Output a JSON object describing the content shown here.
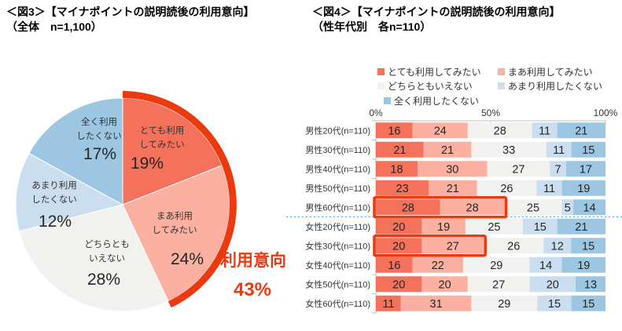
{
  "colors": {
    "series": [
      "#F4715B",
      "#FBB0A2",
      "#F1F1EF",
      "#CBDEF0",
      "#9CC6E2"
    ],
    "highlight_red": "#EA3A0E",
    "separator_blue": "#4AA3DA",
    "axis_gray": "#BFBFBF",
    "value_text": "#262626",
    "label_text": "#333333"
  },
  "chart_data": [
    {
      "type": "pie",
      "title": "＜図3＞【マイナポイントの説明読後の利用意向】",
      "subtitle": "（全体　n=1,100）",
      "unit": "%",
      "start_angle": "top",
      "direction": "clockwise",
      "categories": [
        "とても利用してみたい",
        "まあ利用してみたい",
        "どちらともいえない",
        "あまり利用したくない",
        "全く利用したくない"
      ],
      "values": [
        19,
        24,
        28,
        12,
        17
      ],
      "label_lines": [
        [
          "とても利用",
          "してみたい"
        ],
        [
          "まあ利用",
          "してみたい"
        ],
        [
          "どちらとも",
          "いえない"
        ],
        [
          "あまり利用",
          "したくない"
        ],
        [
          "全く利用",
          "したくない"
        ]
      ],
      "annotation": {
        "label": "利用意向",
        "value_text": "43%",
        "span_percent": 43,
        "covers": [
          "とても利用してみたい",
          "まあ利用してみたい"
        ]
      }
    },
    {
      "type": "bar",
      "variant": "stacked-horizontal-100",
      "title": "＜図4＞【マイナポイントの説明読後の利用意向】",
      "subtitle": "（性年代別　各n=110）",
      "xlim": [
        0,
        100
      ],
      "x_ticks": [
        {
          "pos": 0,
          "label": "0%"
        },
        {
          "pos": 50,
          "label": "50%"
        },
        {
          "pos": 100,
          "label": "100%"
        }
      ],
      "legend_position": "top",
      "categories": [
        "男性20代(n=110)",
        "男性30代(n=110)",
        "男性40代(n=110)",
        "男性50代(n=110)",
        "男性60代(n=110)",
        "女性20代(n=110)",
        "女性30代(n=110)",
        "女性40代(n=110)",
        "女性50代(n=110)",
        "女性60代(n=110)"
      ],
      "series": [
        {
          "name": "とても利用してみたい",
          "values": [
            16,
            21,
            18,
            23,
            28,
            20,
            20,
            16,
            20,
            11
          ]
        },
        {
          "name": "まあ利用してみたい",
          "values": [
            24,
            21,
            30,
            21,
            28,
            19,
            27,
            22,
            20,
            31
          ]
        },
        {
          "name": "どちらともいえない",
          "values": [
            28,
            33,
            27,
            26,
            25,
            25,
            26,
            29,
            27,
            29
          ]
        },
        {
          "name": "あまり利用したくない",
          "values": [
            11,
            11,
            7,
            11,
            5,
            15,
            12,
            14,
            20,
            15
          ]
        },
        {
          "name": "全く利用したくない",
          "values": [
            21,
            15,
            17,
            19,
            14,
            21,
            15,
            19,
            13,
            15
          ]
        }
      ],
      "group_separator_after_index": 4,
      "highlights": [
        {
          "row_index": 4,
          "series_count": 2
        },
        {
          "row_index": 6,
          "series_count": 2
        }
      ]
    }
  ]
}
